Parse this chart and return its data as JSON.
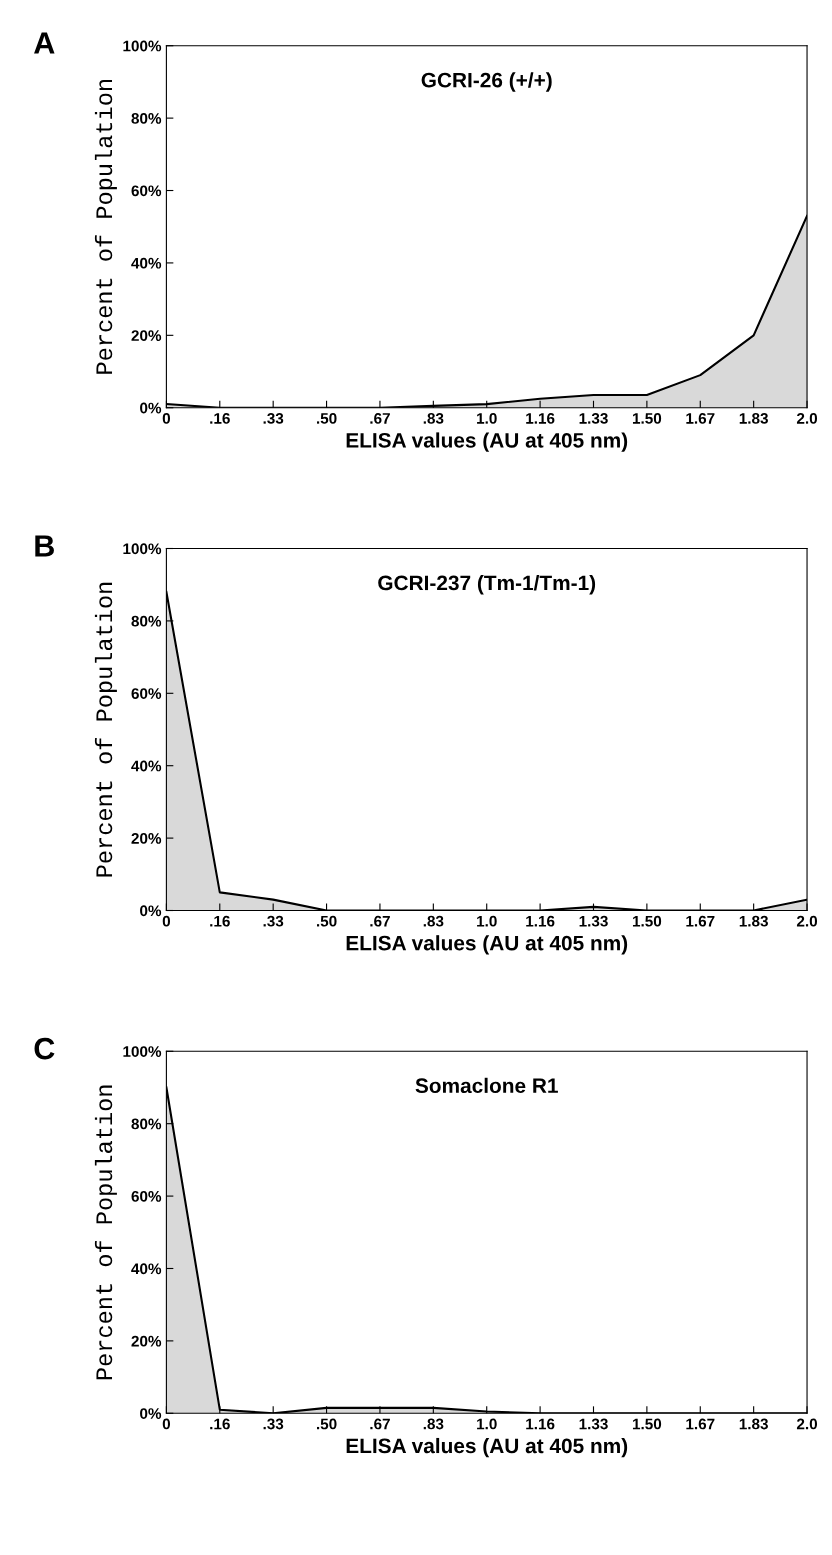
{
  "chart_data": [
    {
      "type": "area",
      "title": "GCRI-26 (+/+)",
      "xlabel": "ELISA values (AU at 405 nm)",
      "ylabel": "Percent of Population",
      "annotations": [
        "A"
      ],
      "categories": [
        "0",
        ".16",
        ".33",
        ".50",
        ".67",
        ".83",
        "1.0",
        "1.16",
        "1.33",
        "1.50",
        "1.67",
        "1.83",
        "2.0"
      ],
      "series": [
        {
          "color": "#000000",
          "values": [
            1,
            0,
            0,
            0,
            0,
            0.5,
            1,
            2.5,
            3.5,
            3.5,
            9,
            20,
            53
          ]
        }
      ],
      "ylim": [
        0,
        100
      ],
      "yticks": [
        {
          "value": 0,
          "label": "0%"
        },
        {
          "value": 20,
          "label": "20%"
        },
        {
          "value": 40,
          "label": "40%"
        },
        {
          "value": 60,
          "label": "60%"
        },
        {
          "value": 80,
          "label": "80%"
        },
        {
          "value": 100,
          "label": "100%"
        }
      ]
    },
    {
      "type": "area",
      "title": "GCRI-237 (Tm-1/Tm-1)",
      "xlabel": "ELISA values (AU at 405 nm)",
      "ylabel": "Percent of Population",
      "annotations": [
        "B"
      ],
      "categories": [
        "0",
        ".16",
        ".33",
        ".50",
        ".67",
        ".83",
        "1.0",
        "1.16",
        "1.33",
        "1.50",
        "1.67",
        "1.83",
        "2.0"
      ],
      "series": [
        {
          "color": "#000000",
          "values": [
            88,
            5,
            3,
            0,
            0,
            0,
            0,
            0,
            1,
            0,
            0,
            0,
            3
          ]
        }
      ],
      "ylim": [
        0,
        100
      ],
      "yticks": [
        {
          "value": 0,
          "label": "0%"
        },
        {
          "value": 20,
          "label": "20%"
        },
        {
          "value": 40,
          "label": "40%"
        },
        {
          "value": 60,
          "label": "60%"
        },
        {
          "value": 80,
          "label": "80%"
        },
        {
          "value": 100,
          "label": "100%"
        }
      ]
    },
    {
      "type": "area",
      "title": "Somaclone R1",
      "xlabel": "ELISA values (AU at 405 nm)",
      "ylabel": "Percent of Population",
      "annotations": [
        "C"
      ],
      "categories": [
        "0",
        ".16",
        ".33",
        ".50",
        ".67",
        ".83",
        "1.0",
        "1.16",
        "1.33",
        "1.50",
        "1.67",
        "1.83",
        "2.0"
      ],
      "series": [
        {
          "color": "#000000",
          "values": [
            90,
            1,
            0,
            1.5,
            1.5,
            1.5,
            0.5,
            0,
            0,
            0,
            0,
            0,
            0
          ]
        }
      ],
      "ylim": [
        0,
        100
      ],
      "yticks": [
        {
          "value": 0,
          "label": "0%"
        },
        {
          "value": 20,
          "label": "20%"
        },
        {
          "value": 40,
          "label": "40%"
        },
        {
          "value": 60,
          "label": "60%"
        },
        {
          "value": 80,
          "label": "80%"
        },
        {
          "value": 100,
          "label": "100%"
        }
      ]
    }
  ]
}
